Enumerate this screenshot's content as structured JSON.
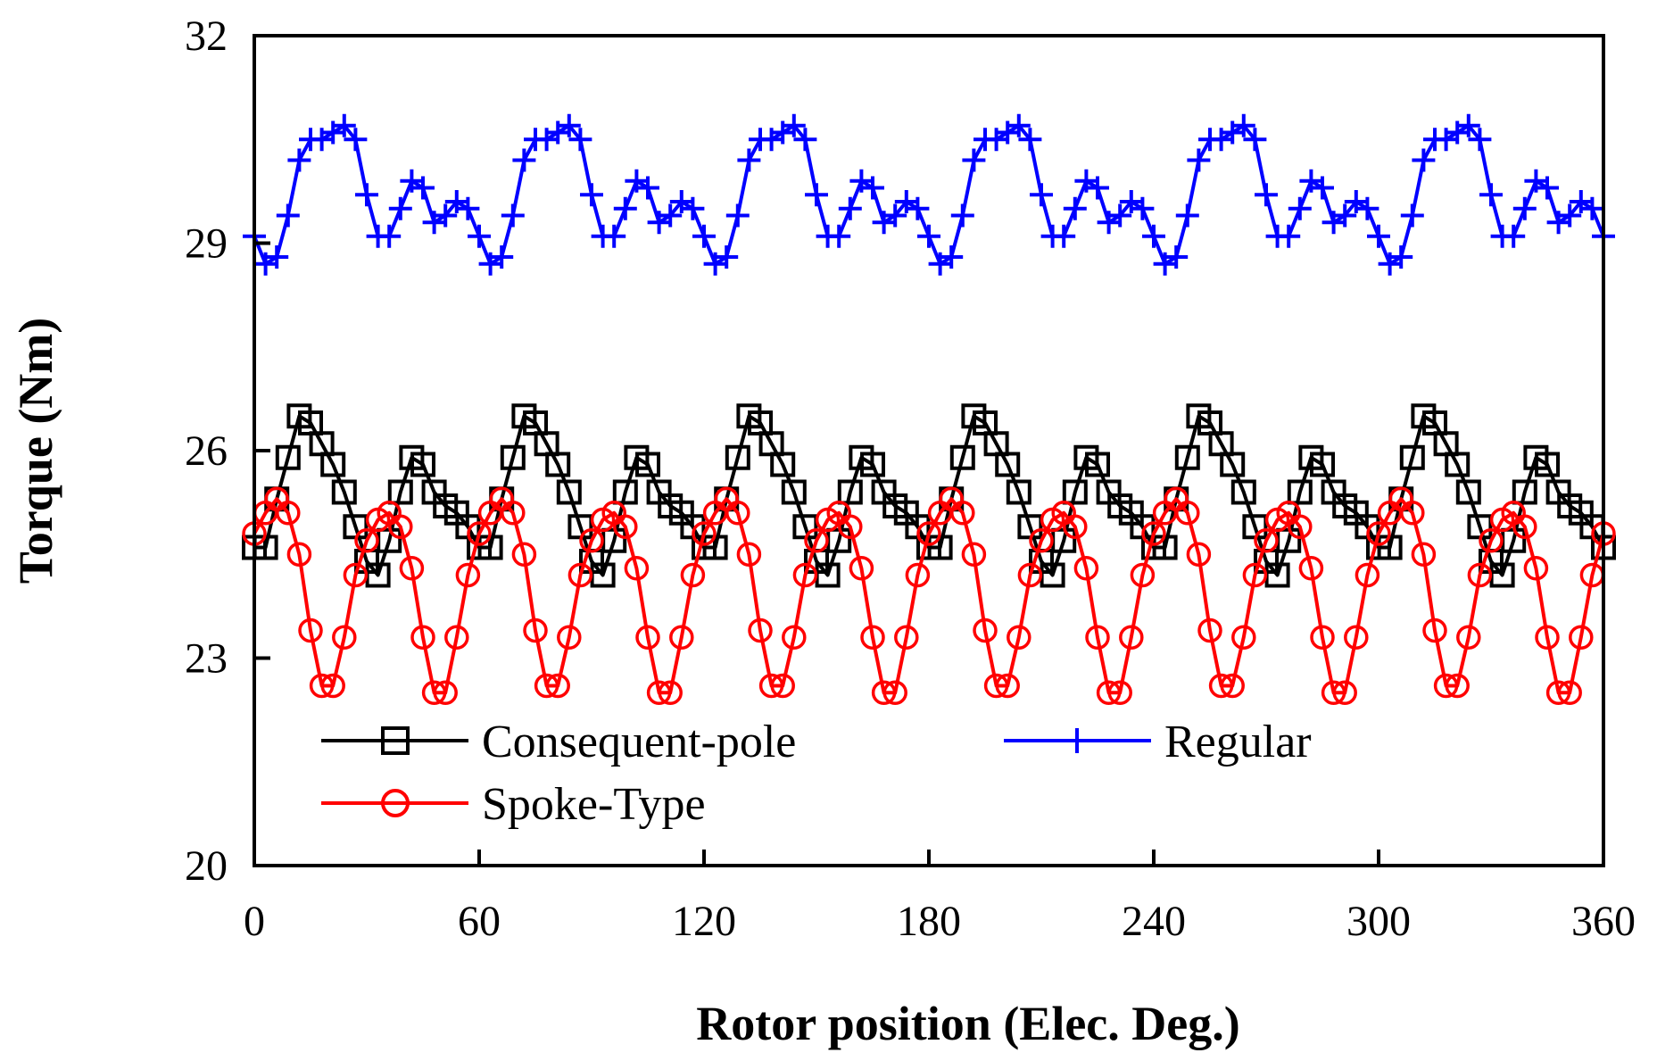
{
  "chart_data": {
    "type": "line",
    "title": "",
    "xlabel": "Rotor position (Elec. Deg.)",
    "ylabel": "Torque (Nm)",
    "xlim": [
      0,
      360
    ],
    "ylim": [
      20,
      32
    ],
    "xticks": [
      0,
      60,
      120,
      180,
      240,
      300,
      360
    ],
    "yticks": [
      20,
      23,
      26,
      29,
      32
    ],
    "grid": false,
    "legend_position": "lower-inside",
    "series": [
      {
        "name": "Consequent-pole",
        "color": "#000000",
        "marker": "square",
        "x": [
          0,
          3,
          6,
          9,
          12,
          15,
          18,
          21,
          24,
          27,
          30,
          33,
          36,
          39,
          42,
          45,
          48,
          51,
          54,
          57
        ],
        "y": [
          24.6,
          24.6,
          25.3,
          25.9,
          26.5,
          26.4,
          26.1,
          25.8,
          25.4,
          24.9,
          24.4,
          24.2,
          24.7,
          25.4,
          25.9,
          25.8,
          25.4,
          25.2,
          25.1,
          24.9
        ],
        "period": 60
      },
      {
        "name": "Regular",
        "color": "#0000ff",
        "marker": "plus",
        "x": [
          0,
          3,
          6,
          9,
          12,
          15,
          18,
          21,
          24,
          27,
          30,
          33,
          36,
          39,
          42,
          45,
          48,
          51,
          54,
          57
        ],
        "y": [
          29.1,
          28.7,
          28.8,
          29.4,
          30.2,
          30.5,
          30.5,
          30.6,
          30.7,
          30.5,
          29.7,
          29.1,
          29.1,
          29.5,
          29.9,
          29.8,
          29.3,
          29.4,
          29.6,
          29.5
        ],
        "period": 60
      },
      {
        "name": "Spoke-Type",
        "color": "#ff0000",
        "marker": "circle",
        "x": [
          0,
          3,
          6,
          9,
          12,
          15,
          18,
          21,
          24,
          27,
          30,
          33,
          36,
          39,
          42,
          45,
          48,
          51,
          54,
          57
        ],
        "y": [
          24.8,
          25.1,
          25.3,
          25.1,
          24.5,
          23.4,
          22.6,
          22.6,
          23.3,
          24.2,
          24.7,
          25.0,
          25.1,
          24.9,
          24.3,
          23.3,
          22.5,
          22.5,
          23.3,
          24.2
        ],
        "period": 60
      }
    ]
  }
}
